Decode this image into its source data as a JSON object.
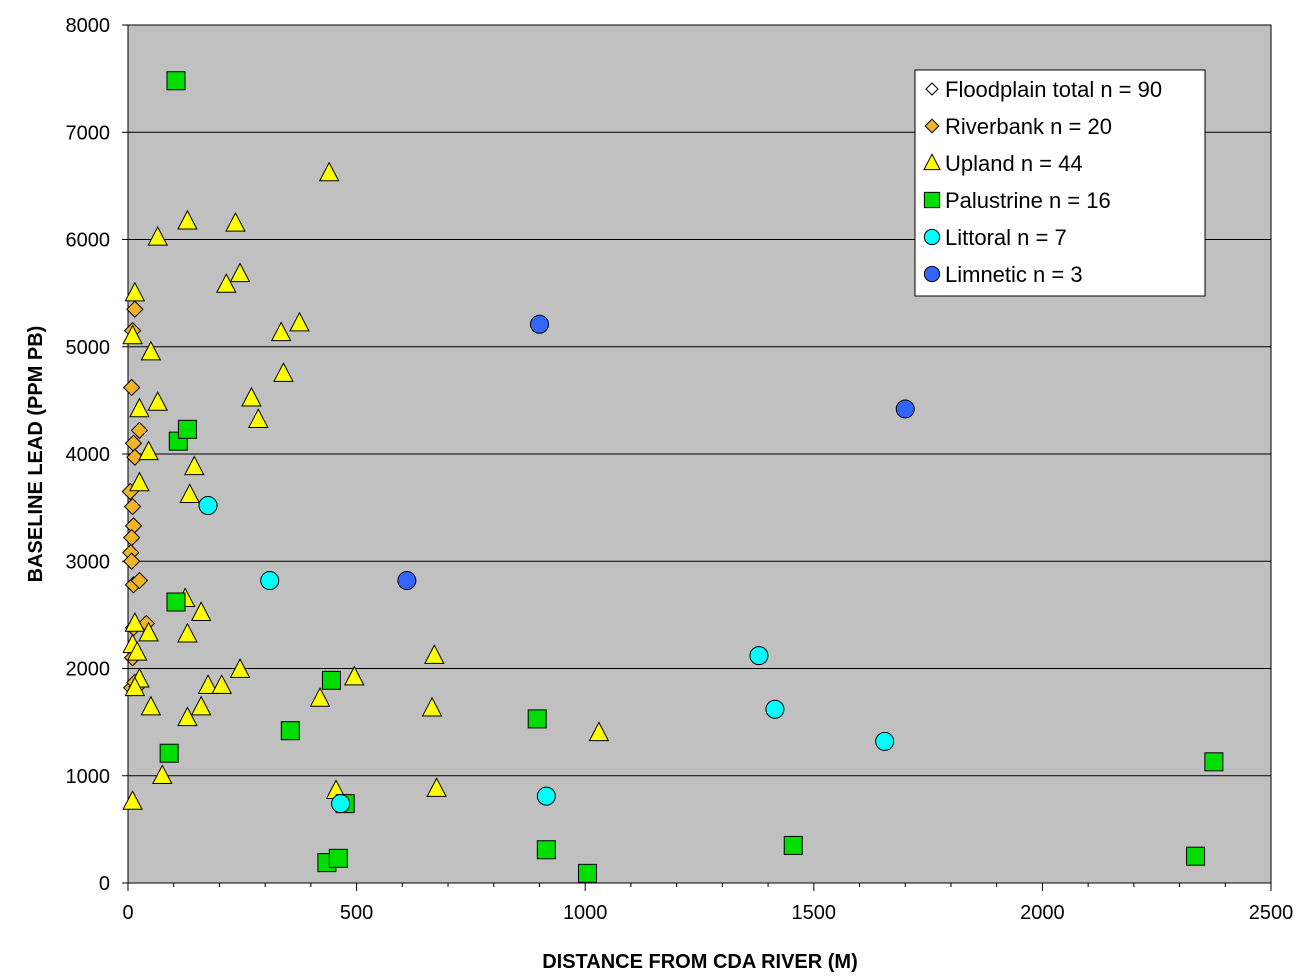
{
  "chart_data": {
    "type": "scatter",
    "title": "",
    "xlabel": "DISTANCE FROM CDA RIVER (M)",
    "ylabel": "BASELINE LEAD (PPM PB)",
    "xlim": [
      0,
      2500
    ],
    "ylim": [
      0,
      8000
    ],
    "x_ticks": [
      "0",
      "500",
      "1000",
      "1500",
      "2000",
      "2500"
    ],
    "y_ticks": [
      "0",
      "1000",
      "2000",
      "3000",
      "4000",
      "5000",
      "6000",
      "7000",
      "8000"
    ],
    "grid": "horizontal",
    "plot_background": "#c0c0c0",
    "legend_position": "top-right",
    "series": [
      {
        "name": "Floodplain total n = 90",
        "marker": "diamond",
        "color": "#ffffff",
        "points": []
      },
      {
        "name": "Riverbank n = 20",
        "marker": "diamond",
        "color": "#f0b429",
        "points": [
          [
            10,
            5150
          ],
          [
            15,
            5350
          ],
          [
            8,
            4620
          ],
          [
            12,
            4100
          ],
          [
            25,
            4220
          ],
          [
            15,
            3970
          ],
          [
            5,
            3650
          ],
          [
            10,
            3510
          ],
          [
            12,
            3330
          ],
          [
            8,
            3220
          ],
          [
            6,
            3080
          ],
          [
            8,
            3000
          ],
          [
            12,
            2780
          ],
          [
            25,
            2820
          ],
          [
            40,
            2420
          ],
          [
            12,
            2380
          ],
          [
            10,
            2100
          ],
          [
            8,
            1820
          ],
          [
            20,
            1830
          ],
          [
            15,
            1870
          ]
        ]
      },
      {
        "name": "Upland n = 44",
        "marker": "triangle",
        "color": "#ffff00",
        "points": [
          [
            15,
            5500
          ],
          [
            10,
            5100
          ],
          [
            50,
            4950
          ],
          [
            25,
            4420
          ],
          [
            65,
            4480
          ],
          [
            45,
            4020
          ],
          [
            25,
            3730
          ],
          [
            65,
            6020
          ],
          [
            130,
            6170
          ],
          [
            235,
            6150
          ],
          [
            215,
            5580
          ],
          [
            245,
            5680
          ],
          [
            335,
            5130
          ],
          [
            375,
            5220
          ],
          [
            440,
            6620
          ],
          [
            340,
            4750
          ],
          [
            270,
            4520
          ],
          [
            285,
            4320
          ],
          [
            145,
            3880
          ],
          [
            135,
            3620
          ],
          [
            15,
            2420
          ],
          [
            45,
            2330
          ],
          [
            125,
            2650
          ],
          [
            130,
            2320
          ],
          [
            160,
            2520
          ],
          [
            10,
            2220
          ],
          [
            245,
            1990
          ],
          [
            175,
            1840
          ],
          [
            205,
            1840
          ],
          [
            160,
            1640
          ],
          [
            130,
            1540
          ],
          [
            50,
            1640
          ],
          [
            25,
            1900
          ],
          [
            15,
            1820
          ],
          [
            75,
            1000
          ],
          [
            10,
            760
          ],
          [
            420,
            1720
          ],
          [
            495,
            1920
          ],
          [
            670,
            2120
          ],
          [
            665,
            1630
          ],
          [
            675,
            880
          ],
          [
            455,
            860
          ],
          [
            1030,
            1400
          ],
          [
            20,
            2150
          ]
        ]
      },
      {
        "name": "Palustrine n = 16",
        "marker": "square",
        "color": "#00dd00",
        "points": [
          [
            105,
            7480
          ],
          [
            110,
            4120
          ],
          [
            130,
            4230
          ],
          [
            105,
            2620
          ],
          [
            90,
            1210
          ],
          [
            355,
            1420
          ],
          [
            445,
            1890
          ],
          [
            475,
            740
          ],
          [
            435,
            190
          ],
          [
            460,
            230
          ],
          [
            895,
            1530
          ],
          [
            915,
            310
          ],
          [
            1005,
            90
          ],
          [
            1455,
            350
          ],
          [
            2335,
            250
          ],
          [
            2375,
            1130
          ]
        ]
      },
      {
        "name": "Littoral n = 7",
        "marker": "circle",
        "color": "#00ffff",
        "points": [
          [
            175,
            3520
          ],
          [
            310,
            2820
          ],
          [
            465,
            740
          ],
          [
            915,
            810
          ],
          [
            1380,
            2120
          ],
          [
            1415,
            1620
          ],
          [
            1655,
            1320
          ]
        ]
      },
      {
        "name": "Limnetic n = 3",
        "marker": "circle",
        "color": "#3366ff",
        "points": [
          [
            900,
            5210
          ],
          [
            610,
            2820
          ],
          [
            1700,
            4420
          ]
        ]
      }
    ]
  }
}
